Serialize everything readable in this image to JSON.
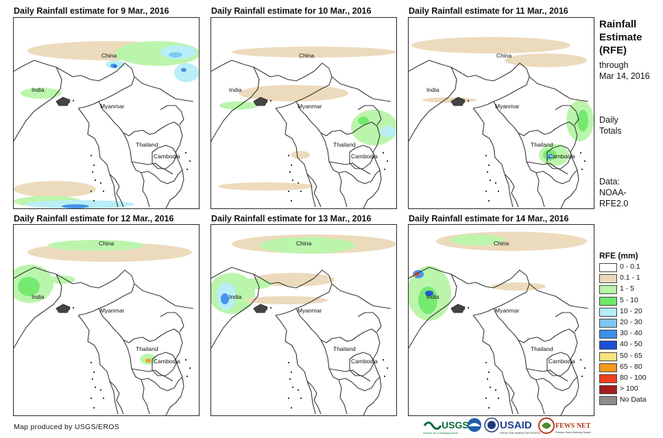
{
  "panels": [
    {
      "title": "Daily Rainfall estimate for 9 Mar., 2016"
    },
    {
      "title": "Daily Rainfall estimate for 10 Mar., 2016"
    },
    {
      "title": "Daily Rainfall estimate for 11 Mar., 2016"
    },
    {
      "title": "Daily Rainfall estimate for 12 Mar., 2016"
    },
    {
      "title": "Daily Rainfall estimate for 13 Mar., 2016"
    },
    {
      "title": "Daily Rainfall estimate for 14 Mar., 2016"
    }
  ],
  "map_labels": {
    "china": "China",
    "india": "India",
    "myanmar": "Myanmar",
    "thailand": "Thailand",
    "cambodia": "Cambodia"
  },
  "sidebar": {
    "heading_line1": "Rainfall",
    "heading_line2": "Estimate",
    "heading_line3": "(RFE)",
    "through": "through",
    "date": "Mar 14, 2016",
    "totals_line1": "Daily",
    "totals_line2": "Totals",
    "data_line1": "Data:",
    "data_line2": "NOAA-",
    "data_line3": "RFE2.0"
  },
  "legend": {
    "title": "RFE (mm)",
    "items": [
      {
        "label": "0 - 0.1",
        "color": "#ffffff"
      },
      {
        "label": "0.1 - 1",
        "color": "#ecd9b9"
      },
      {
        "label": "1 - 5",
        "color": "#b8f5a8"
      },
      {
        "label": "5 - 10",
        "color": "#6fe86a"
      },
      {
        "label": "10 - 20",
        "color": "#b6eef7"
      },
      {
        "label": "20 - 30",
        "color": "#7cc6f5"
      },
      {
        "label": "30 - 40",
        "color": "#3d8ee8"
      },
      {
        "label": "40 - 50",
        "color": "#1c4fd6"
      },
      {
        "label": "50 - 65",
        "color": "#fbe37e"
      },
      {
        "label": "65 - 80",
        "color": "#f59a1c"
      },
      {
        "label": "80 - 100",
        "color": "#f0401e"
      },
      {
        "label": "> 100",
        "color": "#a31e1e"
      },
      {
        "label": "No Data",
        "color": "#8c8c8c"
      }
    ]
  },
  "footer": {
    "credit": "Map produced by USGS/EROS"
  },
  "logos": {
    "usgs": "USGS",
    "usaid": "USAID",
    "fewsnet": "FEWS NET"
  }
}
